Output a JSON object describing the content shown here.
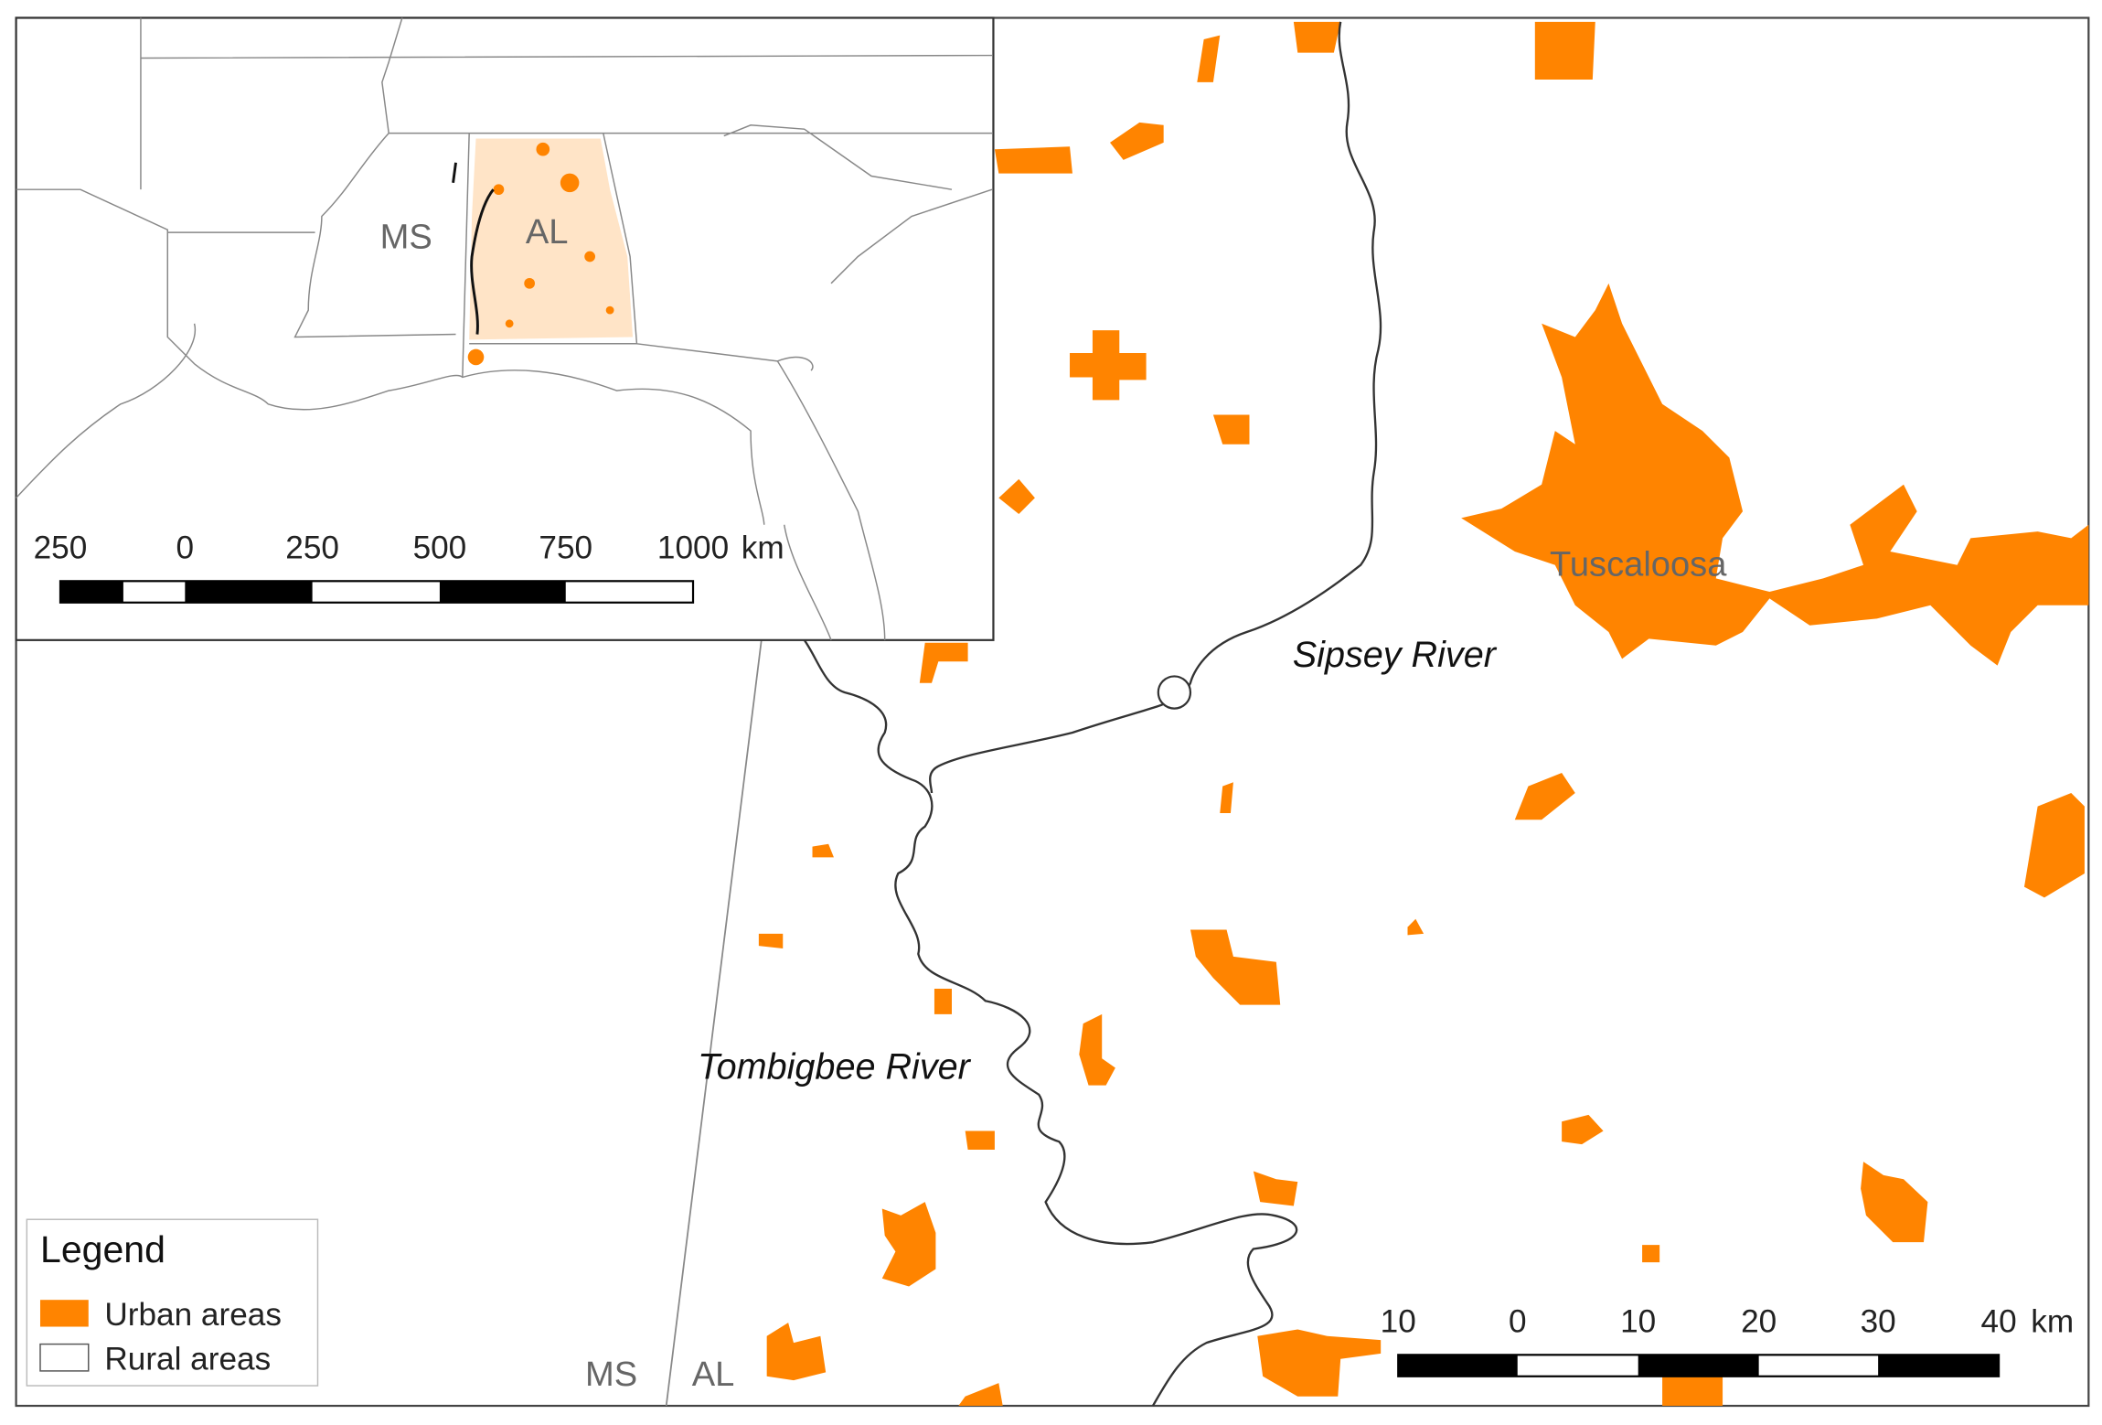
{
  "inset": {
    "state_labels": [
      "MS",
      "AL"
    ],
    "scale_bar": {
      "labels": [
        "250",
        "0",
        "250",
        "500",
        "750",
        "1000"
      ],
      "unit": "km"
    }
  },
  "main": {
    "city_label": "Tuscaloosa",
    "river_labels": [
      "Sipsey River",
      "Tombigbee River"
    ],
    "state_labels": [
      "MS",
      "AL"
    ],
    "scale_bar": {
      "labels": [
        "10",
        "0",
        "10",
        "20",
        "30",
        "40"
      ],
      "unit": "km"
    }
  },
  "legend": {
    "title": "Legend",
    "items": [
      "Urban areas",
      "Rural areas"
    ]
  }
}
